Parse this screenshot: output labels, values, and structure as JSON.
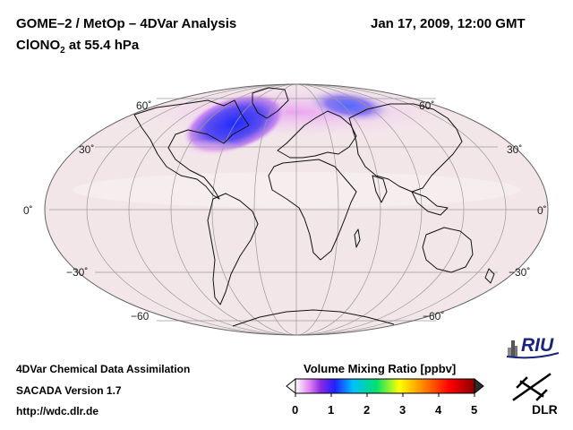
{
  "header": {
    "title_line1": "GOME–2 / MetOp – 4DVar Analysis",
    "species_prefix": "ClONO",
    "species_subscript": "2",
    "species_suffix": " at 55.4 hPa",
    "datetime": "Jan 17, 2009, 12:00 GMT"
  },
  "map": {
    "projection": "Mollweide",
    "lat_labels_left": [
      "60˚",
      "30˚",
      "0˚",
      "−30˚",
      "−60"
    ],
    "lat_labels_right": [
      "60˚",
      "30˚",
      "0˚",
      "−30˚",
      "−60˚"
    ]
  },
  "colorbar": {
    "title": "Volume Mixing Ratio [ppbv]",
    "ticks": [
      "0",
      "1",
      "2",
      "3",
      "4",
      "5"
    ],
    "colors": [
      "#ffffff",
      "#e080f0",
      "#8a2be2",
      "#2020ff",
      "#00bfff",
      "#00e070",
      "#ffff00",
      "#ff8000",
      "#ff0000",
      "#8b0000"
    ]
  },
  "footer": {
    "line1": "4DVar Chemical Data Assimilation",
    "line2": "SACADA Version 1.7",
    "line3": "http://wdc.dlr.de"
  },
  "logos": {
    "riu_text": "RIU",
    "dlr_text": "DLR"
  }
}
